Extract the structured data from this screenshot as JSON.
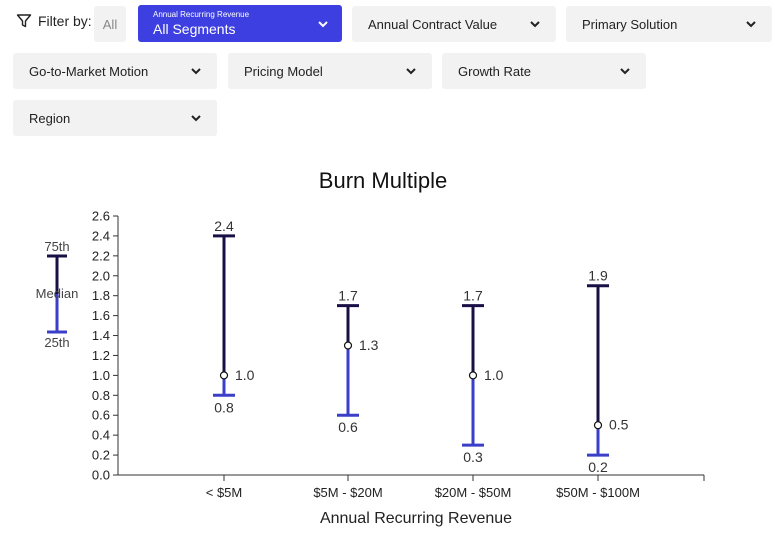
{
  "filters": {
    "label": "Filter by:",
    "all_label": "All",
    "active": {
      "title": "Annual Recurring Revenue",
      "value": "All Segments"
    },
    "dropdowns": [
      "Annual Contract Value",
      "Primary Solution",
      "Go-to-Market Motion",
      "Pricing Model",
      "Growth Rate",
      "Region"
    ]
  },
  "colors": {
    "accent": "#3d3fe0",
    "upper": "#1a1046",
    "lower": "#3b3fc8",
    "chip_bg": "#f2f2f2"
  },
  "chart_data": {
    "type": "range",
    "title": "Burn Multiple",
    "xlabel": "Annual Recurring Revenue",
    "ylabel": "",
    "ylim": [
      0,
      2.6
    ],
    "yticks": [
      "0.0",
      "0.2",
      "0.4",
      "0.6",
      "0.8",
      "1.0",
      "1.2",
      "1.4",
      "1.6",
      "1.8",
      "2.0",
      "2.2",
      "2.4",
      "2.6"
    ],
    "categories": [
      "< $5M",
      "$5M - $20M",
      "$20M - $50M",
      "$50M - $100M"
    ],
    "p25": [
      0.8,
      0.6,
      0.3,
      0.2
    ],
    "median": [
      1.0,
      1.3,
      1.0,
      0.5
    ],
    "p75": [
      2.4,
      1.7,
      1.7,
      1.9
    ],
    "p25_labels": [
      "0.8",
      "0.6",
      "0.3",
      "0.2"
    ],
    "median_labels": [
      "1.0",
      "1.3",
      "1.0",
      "0.5"
    ],
    "p75_labels": [
      "2.4",
      "1.7",
      "1.7",
      "1.9"
    ],
    "legend": {
      "top": "75th",
      "middle": "Median",
      "bottom": "25th"
    }
  }
}
